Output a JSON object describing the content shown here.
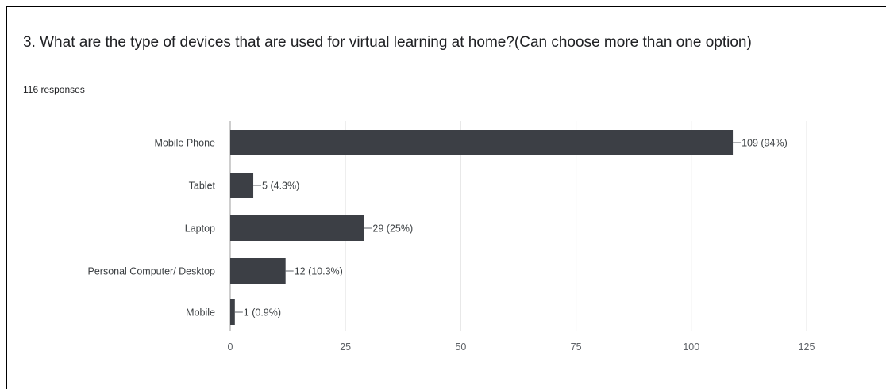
{
  "question": {
    "title": "3. What are the type of devices that are used for virtual learning at home?(Can choose more than one option)",
    "responses": "116 responses"
  },
  "colors": {
    "bar": "#3c3f45",
    "grid": "#e6e6e6",
    "axis": "#9e9e9e"
  },
  "chart_data": {
    "type": "bar",
    "orientation": "horizontal",
    "categories": [
      "Mobile Phone",
      "Tablet",
      "Laptop",
      "Personal Computer/ Desktop",
      "Mobile"
    ],
    "values": [
      109,
      5,
      29,
      12,
      1
    ],
    "data_labels": [
      "109 (94%)",
      "5 (4.3%)",
      "29 (25%)",
      "12 (10.3%)",
      "1 (0.9%)"
    ],
    "xlim": [
      0,
      125
    ],
    "xticks": [
      0,
      25,
      50,
      75,
      100,
      125
    ],
    "grid": true,
    "legend": "none",
    "title": "",
    "xlabel": "",
    "ylabel": ""
  }
}
